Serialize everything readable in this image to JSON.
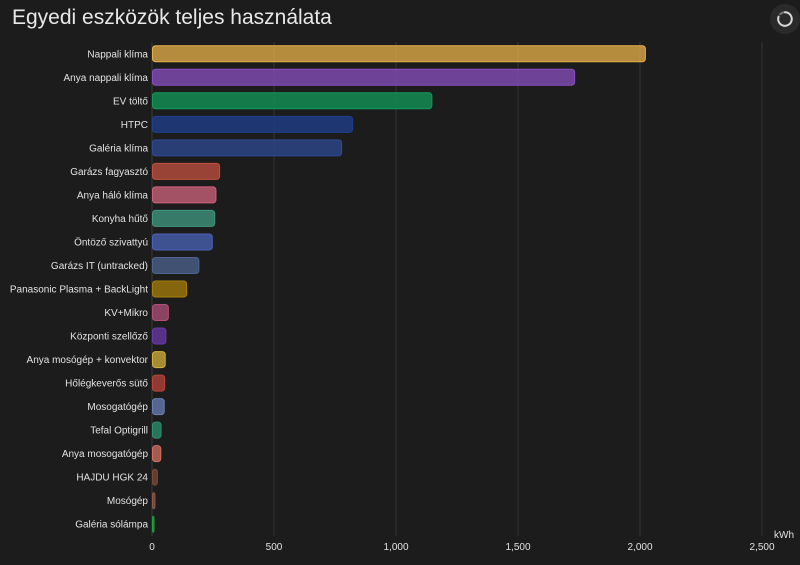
{
  "card": {
    "title": "Egyedi eszközök teljes használata"
  },
  "chart_data": {
    "type": "bar",
    "orientation": "horizontal",
    "title": "Egyedi eszközök teljes használata",
    "xlabel": "kWh",
    "ylabel": "",
    "xlim": [
      0,
      2500
    ],
    "x_ticks": [
      "0",
      "500",
      "1,000",
      "1,500",
      "2,000",
      "2,500"
    ],
    "x_tick_values": [
      0,
      500,
      1000,
      1500,
      2000,
      2500
    ],
    "grid": true,
    "categories": [
      "Nappali klíma",
      "Anya nappali klíma",
      "EV töltő",
      "HTPC",
      "Galéria klíma",
      "Garázs fagyasztó",
      "Anya háló klíma",
      "Konyha hűtő",
      "Öntöző szivattyú",
      "Garázs IT (untracked)",
      "Panasonic Plasma + BackLight",
      "KV+Mikro",
      "Központi szellőző",
      "Anya mosógép + konvektor",
      "Hőlégkeverős sütő",
      "Mosogatógép",
      "Tefal Optigrill",
      "Anya mosogatógép",
      "HAJDU HGK 24",
      "Mosógép",
      "Galéria sólámpa"
    ],
    "values": [
      2020,
      1730,
      1145,
      820,
      775,
      275,
      260,
      255,
      245,
      190,
      140,
      65,
      55,
      52,
      50,
      48,
      35,
      34,
      20,
      10,
      4
    ],
    "colors": [
      "#e8b04a",
      "#8a4fc0",
      "#129a5a",
      "#1f3f8f",
      "#2f4a94",
      "#c2503f",
      "#d0637d",
      "#3f9a80",
      "#4a63b8",
      "#4e638f",
      "#a87e0a",
      "#b05078",
      "#6a3aa8",
      "#d4b23a",
      "#b8443c",
      "#6a7fb8",
      "#2f9070",
      "#d07060",
      "#7a4a3a",
      "#8a5a4a",
      "#20a040"
    ]
  }
}
